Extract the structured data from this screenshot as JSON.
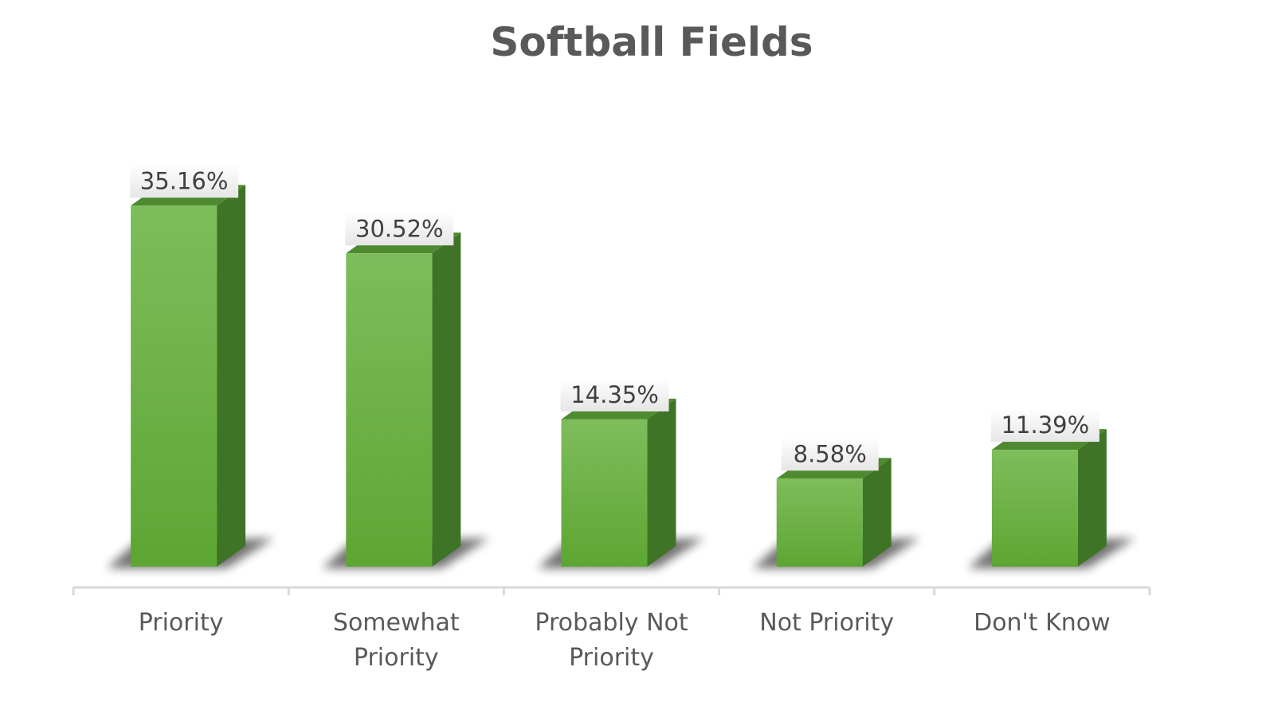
{
  "chart_data": {
    "type": "bar",
    "title": "Softball Fields",
    "categories": [
      "Priority",
      "Somewhat Priority",
      "Probably Not Priority",
      "Not Priority",
      "Don't Know"
    ],
    "category_lines": [
      [
        "Priority"
      ],
      [
        "Somewhat",
        "Priority"
      ],
      [
        "Probably Not",
        "Priority"
      ],
      [
        "Not Priority"
      ],
      [
        "Don't Know"
      ]
    ],
    "values": [
      35.16,
      30.52,
      14.35,
      8.58,
      11.39
    ],
    "data_labels": [
      "35.16%",
      "30.52%",
      "14.35%",
      "8.58%",
      "11.39%"
    ],
    "xlabel": "",
    "ylabel": "",
    "ylim": [
      0,
      40
    ],
    "grid": false,
    "style": "3d-column",
    "colors": {
      "bar_front_light": "#7ebd5b",
      "bar_front_dark": "#5da633",
      "bar_side": "#3f7426",
      "bar_top": "#4d8a30",
      "axis": "#d9d9d9",
      "label_box": "#f2f2f2"
    }
  }
}
